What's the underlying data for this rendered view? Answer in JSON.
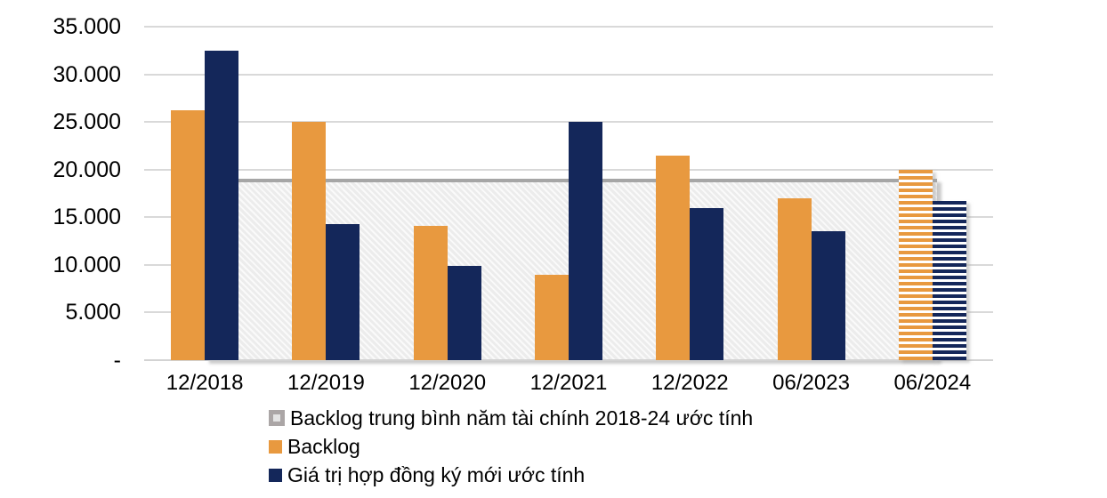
{
  "chart_data": {
    "type": "bar",
    "title": "",
    "categories": [
      "12/2018",
      "12/2019",
      "12/2020",
      "12/2021",
      "12/2022",
      "06/2023",
      "06/2024"
    ],
    "series": [
      {
        "name": "Backlog",
        "color": "#E8993F",
        "values": [
          26200,
          25000,
          14100,
          9000,
          21500,
          17000,
          20000
        ]
      },
      {
        "name": "Giá trị hợp đồng ký mới ước tính",
        "color": "#14275A",
        "values": [
          32500,
          14300,
          9900,
          25000,
          16000,
          13500,
          16700
        ]
      }
    ],
    "estimated_category": "06/2024",
    "estimated_style": "horizontal-stripes",
    "average_band": {
      "label": "Backlog trung bình năm tài chính 2018-24 ước tính",
      "value": 19000,
      "border_color": "#A6A6A6",
      "fill_color": "#F0F0F0"
    },
    "y_axis": {
      "min": 0,
      "max": 35000,
      "tick_values": [
        35000,
        30000,
        25000,
        20000,
        15000,
        10000,
        5000,
        0
      ],
      "ticks": [
        "35.000",
        "30.000",
        "25.000",
        "20.000",
        "15.000",
        "10.000",
        "5.000",
        "-"
      ]
    },
    "grid": true,
    "gridline_color": "#D9D9D9",
    "legend_position": "bottom-left",
    "legend": [
      {
        "swatch": "band",
        "label": "Backlog trung bình năm tài chính 2018-24 ước tính"
      },
      {
        "swatch": "backlog",
        "label": "Backlog"
      },
      {
        "swatch": "new-contracts",
        "label": "Giá trị hợp đồng ký mới ước tính"
      }
    ]
  }
}
